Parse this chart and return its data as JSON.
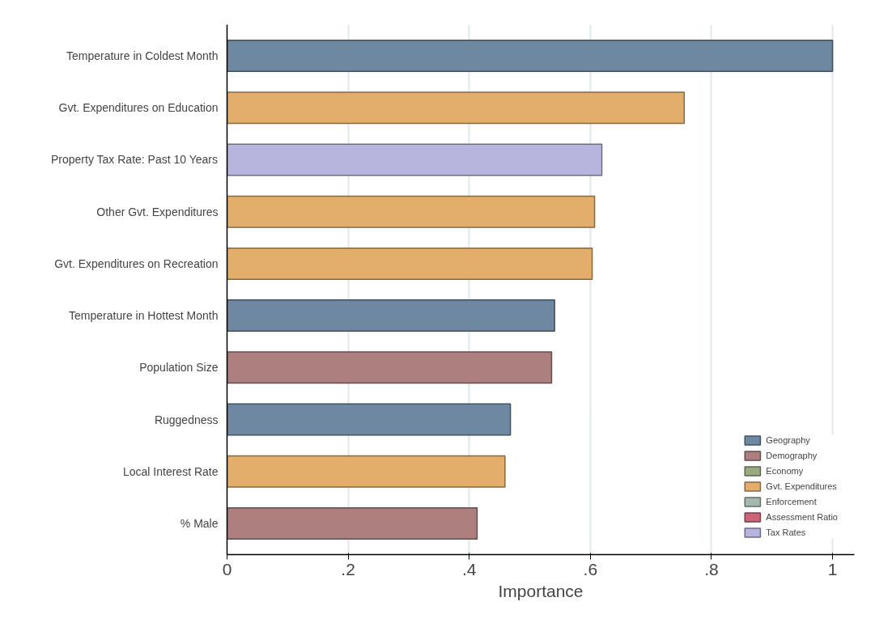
{
  "chart_data": {
    "type": "bar",
    "orientation": "horizontal",
    "xlabel": "Importance",
    "categories": [
      "Temperature in Coldest Month",
      "Gvt. Expenditures on Education",
      "Property Tax Rate: Past 10 Years",
      "Other Gvt. Expenditures",
      "Gvt. Expenditures on Recreation",
      "Temperature in Hottest Month",
      "Population Size",
      "Ruggedness",
      "Local Interest Rate",
      "% Male"
    ],
    "series": [
      {
        "name": "Geography",
        "color": "#6f88a1",
        "values": [
          1.0,
          null,
          null,
          null,
          null,
          0.541,
          null,
          0.468,
          null,
          null
        ]
      },
      {
        "name": "Demography",
        "color": "#ad7f7f",
        "values": [
          null,
          null,
          null,
          null,
          null,
          null,
          0.536,
          null,
          null,
          0.413
        ]
      },
      {
        "name": "Economy",
        "color": "#9aab82",
        "values": [
          null,
          null,
          null,
          null,
          null,
          null,
          null,
          null,
          null,
          null
        ]
      },
      {
        "name": "Gvt. Expenditures",
        "color": "#e3ae6b",
        "values": [
          null,
          0.755,
          null,
          0.607,
          0.603,
          null,
          null,
          null,
          0.459,
          null
        ]
      },
      {
        "name": "Enforcement",
        "color": "#a4b8ae",
        "values": [
          null,
          null,
          null,
          null,
          null,
          null,
          null,
          null,
          null,
          null
        ]
      },
      {
        "name": "Assessment Ratio",
        "color": "#cd6478",
        "values": [
          null,
          null,
          null,
          null,
          null,
          null,
          null,
          null,
          null,
          null
        ]
      },
      {
        "name": "Tax Rates",
        "color": "#b7b5de",
        "values": [
          null,
          null,
          0.619,
          null,
          null,
          null,
          null,
          null,
          null,
          null
        ]
      }
    ],
    "xlim": [
      0,
      1.036
    ],
    "xticks": [
      {
        "value": 0,
        "label": "0"
      },
      {
        "value": 0.2,
        "label": ".2"
      },
      {
        "value": 0.4,
        "label": ".4"
      },
      {
        "value": 0.6,
        "label": ".6"
      },
      {
        "value": 0.8,
        "label": ".8"
      },
      {
        "value": 1,
        "label": "1"
      }
    ],
    "grid": "x",
    "legend": "bottom right"
  }
}
